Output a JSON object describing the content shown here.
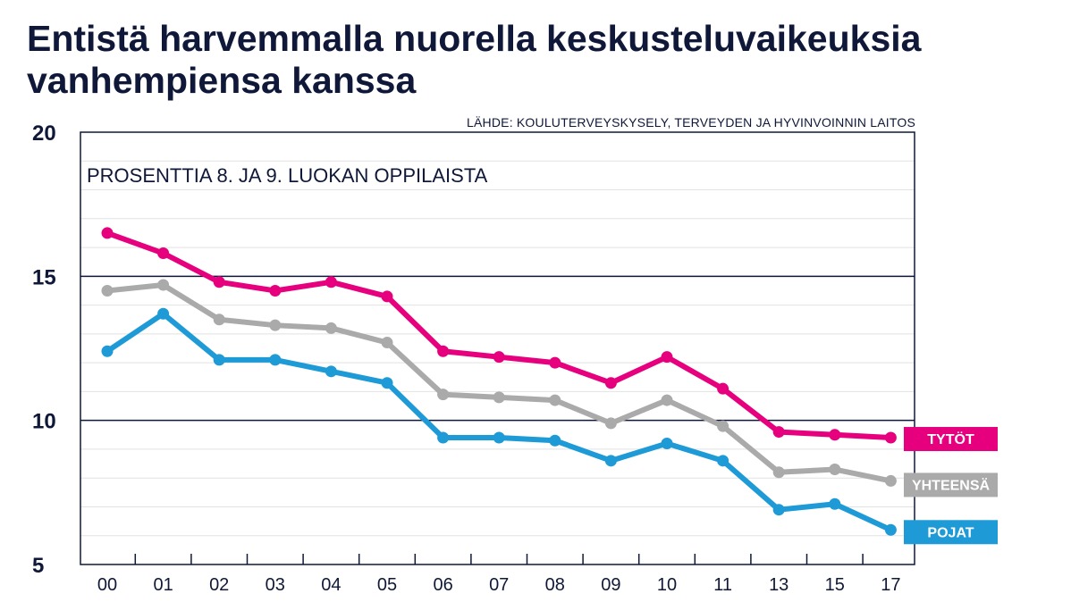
{
  "title": "Entistä harvemmalla nuorella keskusteluvaikeuksia vanhempiensa kanssa",
  "source": "LÄHDE: KOULUTERVEYSKYSELY, TERVEYDEN JA HYVINVOINNIN LAITOS",
  "colors": {
    "tytot": "#e6007e",
    "yhteensa": "#aaaaaa",
    "pojat": "#1e9ad6",
    "ink": "#0f1838"
  },
  "chart_data": {
    "type": "line",
    "title": "Entistä harvemmalla nuorella keskusteluvaikeuksia vanhempiensa kanssa",
    "subtitle": "PROSENTTIA 8. JA 9. LUOKAN OPPILAISTA",
    "xlabel": "",
    "ylabel": "",
    "ylim": [
      5,
      20
    ],
    "yticks": [
      5,
      10,
      15,
      20
    ],
    "x": [
      "00",
      "01",
      "02",
      "03",
      "04",
      "05",
      "06",
      "07",
      "08",
      "09",
      "10",
      "11",
      "13",
      "15",
      "17"
    ],
    "x_positions": [
      0,
      1,
      2,
      3,
      4,
      5,
      6,
      7,
      8,
      9,
      10,
      11,
      12,
      13,
      14
    ],
    "series": [
      {
        "name": "TYTÖT",
        "key": "tytot",
        "values": [
          16.5,
          15.8,
          14.8,
          14.5,
          14.8,
          14.3,
          12.4,
          12.2,
          12.0,
          11.3,
          12.2,
          11.1,
          9.6,
          9.5,
          9.4
        ]
      },
      {
        "name": "YHTEENSÄ",
        "key": "yhteensa",
        "values": [
          14.5,
          14.7,
          13.5,
          13.3,
          13.2,
          12.7,
          10.9,
          10.8,
          10.7,
          9.9,
          10.7,
          9.8,
          8.2,
          8.3,
          7.9
        ]
      },
      {
        "name": "POJAT",
        "key": "pojat",
        "values": [
          12.4,
          13.7,
          12.1,
          12.1,
          11.7,
          11.3,
          9.4,
          9.4,
          9.3,
          8.6,
          9.2,
          8.6,
          6.9,
          7.1,
          6.2
        ]
      }
    ]
  }
}
